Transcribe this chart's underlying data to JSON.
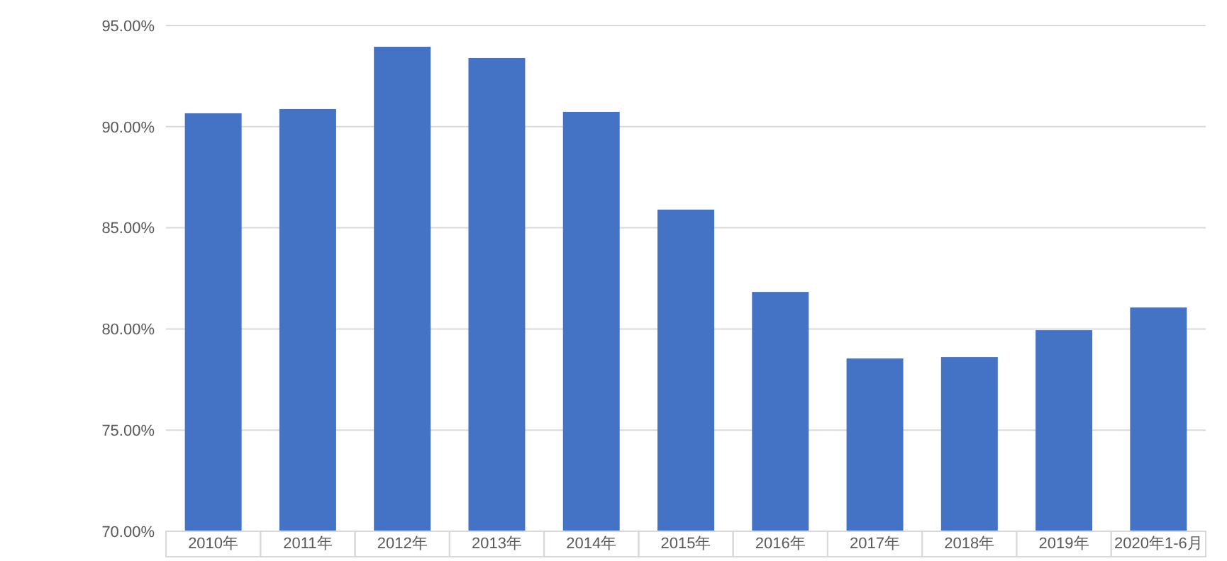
{
  "chart_data": {
    "type": "bar",
    "categories": [
      "2010年",
      "2011年",
      "2012年",
      "2013年",
      "2014年",
      "2015年",
      "2016年",
      "2017年",
      "2018年",
      "2019年",
      "2020年1-6月"
    ],
    "values": [
      90.66,
      90.87,
      93.95,
      93.39,
      90.73,
      85.9,
      81.83,
      78.54,
      78.61,
      79.94,
      81.06
    ],
    "color": "#4472c4",
    "ylim": [
      70,
      95
    ],
    "yticks": [
      {
        "value": 70,
        "label": "70.00%"
      },
      {
        "value": 75,
        "label": "75.00%"
      },
      {
        "value": 80,
        "label": "80.00%"
      },
      {
        "value": 85,
        "label": "85.00%"
      },
      {
        "value": 90,
        "label": "90.00%"
      },
      {
        "value": 95,
        "label": "95.00%"
      }
    ],
    "grid": "y"
  }
}
